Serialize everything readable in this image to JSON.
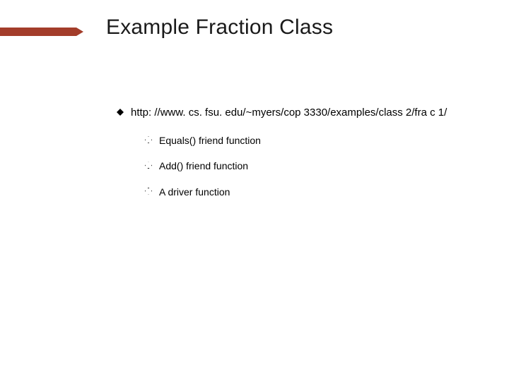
{
  "slide": {
    "title": "Example Fraction Class",
    "accent_color": "#a33d2a",
    "background_color": "#ffffff",
    "title_color": "#1a1a1a",
    "title_fontsize": 30,
    "body_fontsize_l1": 15,
    "body_fontsize_l2": 14,
    "bullets": [
      {
        "text": "http: //www. cs. fsu. edu/~myers/cop 3330/examples/class 2/fra c 1/",
        "children": [
          {
            "text": "Equals() friend function"
          },
          {
            "text": "Add() friend function"
          },
          {
            "text": "A driver function"
          }
        ]
      }
    ]
  }
}
